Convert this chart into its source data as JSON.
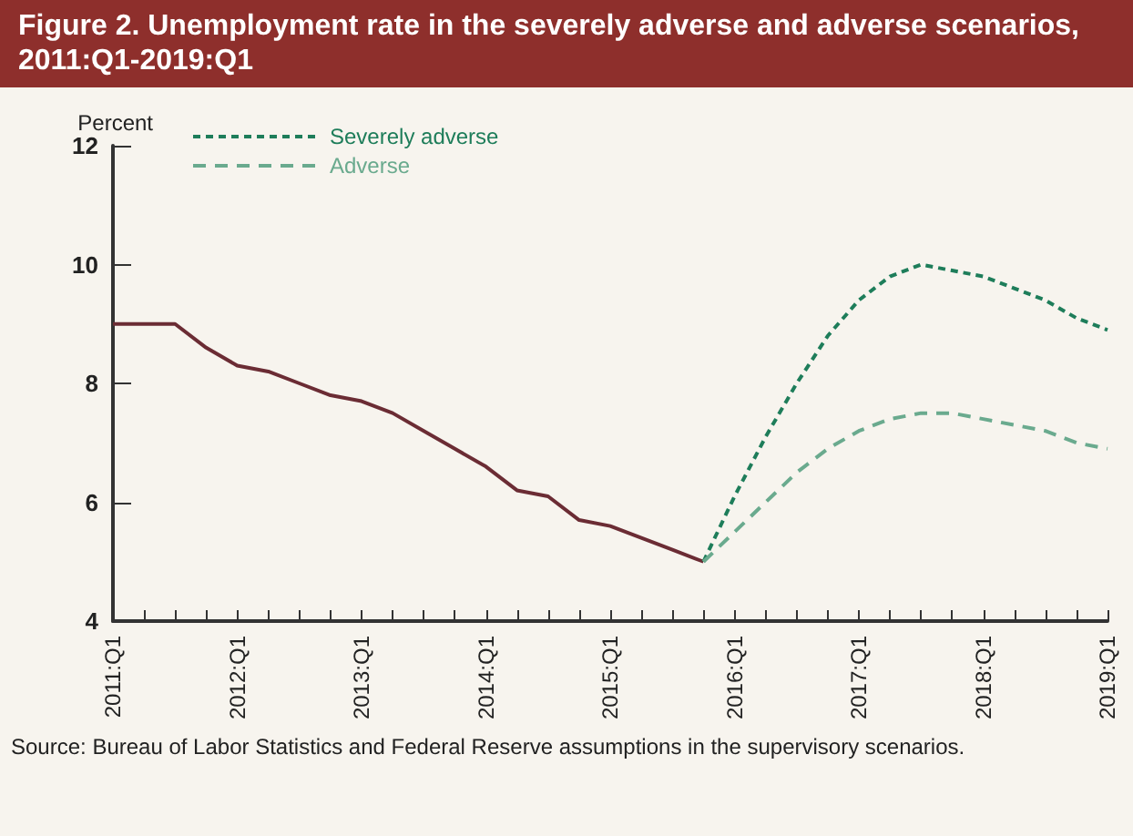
{
  "chart_data": {
    "type": "line",
    "title": "Figure 2. Unemployment rate in the severely adverse and adverse scenarios, 2011:Q1-2019:Q1",
    "ylabel": "Percent",
    "categories": [
      "2011:Q1",
      null,
      null,
      null,
      "2012:Q1",
      null,
      null,
      null,
      "2013:Q1",
      null,
      null,
      null,
      "2014:Q1",
      null,
      null,
      null,
      "2015:Q1",
      null,
      null,
      null,
      "2016:Q1",
      null,
      null,
      null,
      "2017:Q1",
      null,
      null,
      null,
      "2018:Q1",
      null,
      null,
      null,
      "2019:Q1"
    ],
    "series": [
      {
        "color": "#6b2c34",
        "line_style": "solid",
        "values": [
          9.0,
          9.0,
          9.0,
          8.6,
          8.3,
          8.2,
          8.0,
          7.8,
          7.7,
          7.5,
          7.2,
          6.9,
          6.6,
          6.2,
          6.1,
          5.7,
          5.6,
          5.4,
          5.2,
          5.0,
          null,
          null,
          null,
          null,
          null,
          null,
          null,
          null,
          null,
          null,
          null,
          null,
          null
        ]
      },
      {
        "name": "Severely adverse",
        "color": "#1e7d5a",
        "line_style": "dotted",
        "values": [
          null,
          null,
          null,
          null,
          null,
          null,
          null,
          null,
          null,
          null,
          null,
          null,
          null,
          null,
          null,
          null,
          null,
          null,
          null,
          5.0,
          6.1,
          7.1,
          8.0,
          8.8,
          9.4,
          9.8,
          10.0,
          9.9,
          9.8,
          9.6,
          9.4,
          9.1,
          8.9
        ]
      },
      {
        "name": "Adverse",
        "color": "#6aaa8e",
        "line_style": "dashed",
        "values": [
          null,
          null,
          null,
          null,
          null,
          null,
          null,
          null,
          null,
          null,
          null,
          null,
          null,
          null,
          null,
          null,
          null,
          null,
          null,
          5.0,
          5.5,
          6.0,
          6.5,
          6.9,
          7.2,
          7.4,
          7.5,
          7.5,
          7.4,
          7.3,
          7.2,
          7.0,
          6.9
        ]
      }
    ],
    "ylim": [
      4,
      12
    ],
    "yticks": [
      4,
      6,
      8,
      10,
      12
    ],
    "grid": false,
    "legend": "top left",
    "marker": "none",
    "annotations": [
      "Source: Bureau of Labor Statistics and Federal Reserve assumptions in the supervisory scenarios."
    ]
  }
}
